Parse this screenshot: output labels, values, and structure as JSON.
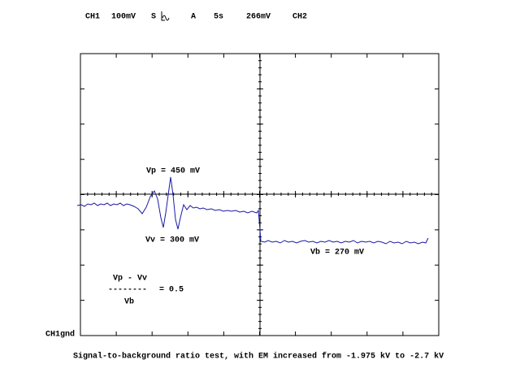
{
  "header": {
    "items": [
      "CH1",
      "100mV",
      "S",
      "A",
      "5s",
      "266mV",
      "CH2"
    ]
  },
  "screen": {
    "ground_label": "CH1gnd",
    "annotations": {
      "peak": "Vp = 450 mV",
      "valley": "Vv = 300 mV",
      "background": "Vb = 270 mV"
    },
    "formula": {
      "numerator": "Vp - Vv",
      "rule": "--------",
      "result": "= 0.5",
      "denominator": "Vb"
    }
  },
  "caption": "Signal-to-background ratio test, with EM increased from -1.975 kV to -2.7 kV"
}
